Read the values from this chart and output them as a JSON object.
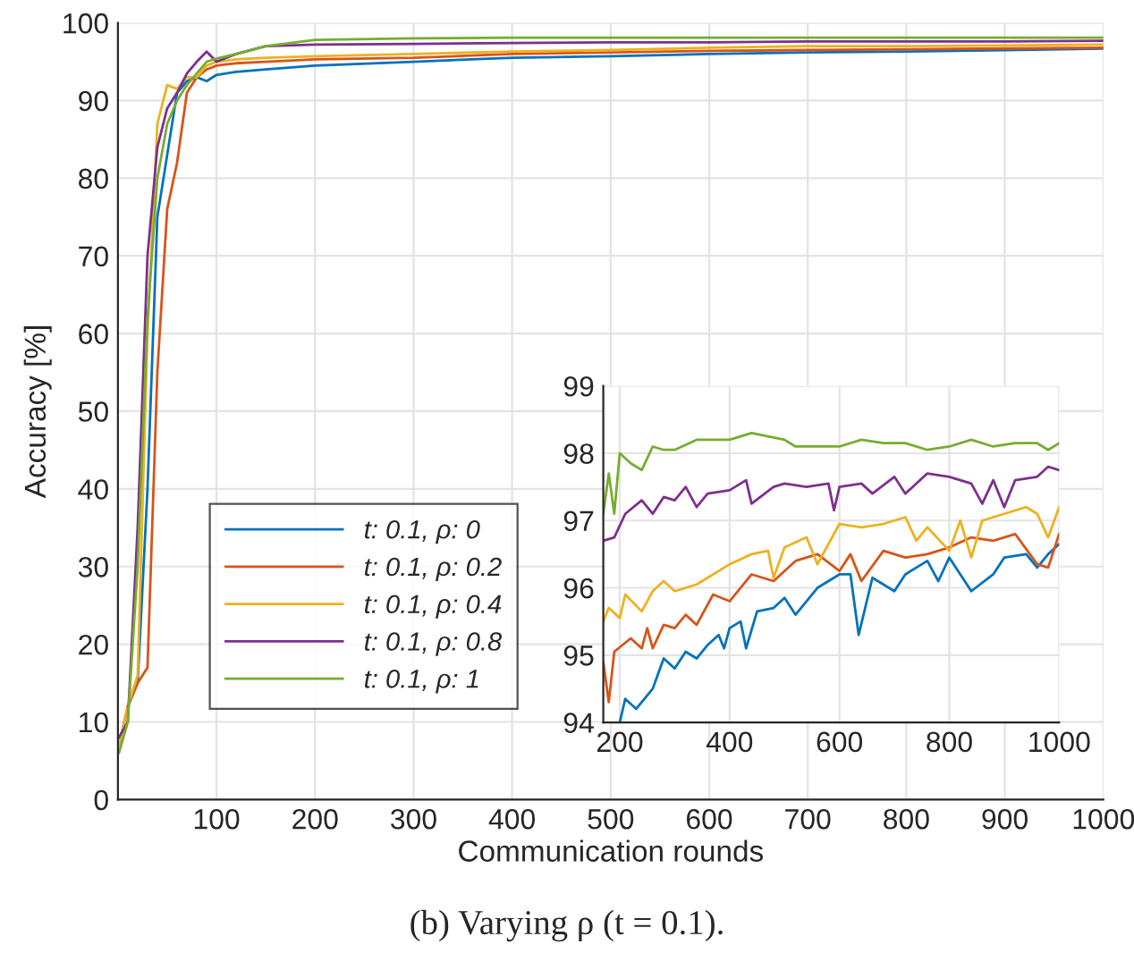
{
  "chart_data": [
    {
      "type": "line",
      "title": "(b) Varying ρ (t = 0.1).",
      "xlabel": "Communication rounds",
      "ylabel": "Accuracy [%]",
      "xlim": [
        0,
        1000
      ],
      "ylim": [
        0,
        100
      ],
      "xticks": [
        100,
        200,
        300,
        400,
        500,
        600,
        700,
        800,
        900,
        1000
      ],
      "yticks": [
        0,
        10,
        20,
        30,
        40,
        50,
        60,
        70,
        80,
        90,
        100
      ],
      "grid": true,
      "legend": "bottom left",
      "x": [
        1,
        10,
        20,
        30,
        40,
        50,
        60,
        70,
        80,
        90,
        100,
        120,
        150,
        200,
        300,
        400,
        500,
        600,
        700,
        800,
        900,
        1000
      ],
      "series": [
        {
          "name": "t: 0.1, ρ: 0",
          "color": "#0072bd",
          "values": [
            null,
            12,
            15,
            40,
            75,
            83,
            91,
            92.5,
            93,
            92.5,
            93.3,
            93.7,
            94,
            94.5,
            95,
            95.5,
            95.7,
            96,
            96.2,
            96.3,
            96.5,
            96.7
          ]
        },
        {
          "name": "t: 0.1, ρ: 0.2",
          "color": "#d95319",
          "values": [
            7,
            12,
            15,
            17,
            55,
            76,
            82,
            91,
            93,
            94,
            94.5,
            94.8,
            95,
            95.3,
            95.5,
            96,
            96.2,
            96.4,
            96.5,
            96.6,
            96.7,
            96.8
          ]
        },
        {
          "name": "t: 0.1, ρ: 0.4",
          "color": "#edb120",
          "values": [
            7,
            12,
            16,
            60,
            87,
            92,
            91.5,
            93,
            93,
            94.5,
            95,
            95.3,
            95.5,
            95.7,
            96,
            96.3,
            96.5,
            96.8,
            97,
            97,
            97.1,
            97.2
          ]
        },
        {
          "name": "t: 0.1, ρ: 0.8",
          "color": "#7e2f8e",
          "values": [
            8,
            10,
            35,
            70,
            84,
            89,
            91,
            93.5,
            95,
            96.3,
            95,
            96,
            97,
            97.2,
            97.3,
            97.4,
            97.5,
            97.5,
            97.6,
            97.6,
            97.6,
            97.7
          ]
        },
        {
          "name": "t: 0.1, ρ: 1",
          "color": "#77ac30",
          "values": [
            6,
            10,
            30,
            62,
            80,
            87,
            90,
            92,
            93.5,
            95,
            95.4,
            96,
            97,
            97.8,
            98,
            98.1,
            98.1,
            98.1,
            98.1,
            98.1,
            98.1,
            98.1
          ]
        }
      ]
    },
    {
      "type": "line",
      "xlim": [
        170,
        1000
      ],
      "ylim": [
        94,
        99
      ],
      "xticks": [
        200,
        400,
        600,
        800,
        1000
      ],
      "yticks": [
        94,
        95,
        96,
        97,
        98,
        99
      ],
      "grid": true,
      "series": [
        {
          "color": "#0072bd",
          "x": [
            200,
            210,
            230,
            260,
            280,
            300,
            320,
            340,
            360,
            380,
            390,
            400,
            420,
            430,
            450,
            480,
            500,
            520,
            560,
            600,
            620,
            635,
            660,
            700,
            720,
            760,
            780,
            800,
            840,
            880,
            900,
            940,
            960,
            980,
            1000
          ],
          "values": [
            94.0,
            94.35,
            94.2,
            94.5,
            94.95,
            94.8,
            95.05,
            94.95,
            95.15,
            95.3,
            95.1,
            95.4,
            95.5,
            95.1,
            95.65,
            95.7,
            95.85,
            95.6,
            96.0,
            96.2,
            96.2,
            95.3,
            96.15,
            95.95,
            96.2,
            96.4,
            96.1,
            96.45,
            95.95,
            96.2,
            96.45,
            96.5,
            96.3,
            96.5,
            96.65
          ]
        },
        {
          "color": "#d95319",
          "x": [
            170,
            180,
            190,
            220,
            240,
            250,
            260,
            280,
            300,
            320,
            340,
            370,
            400,
            440,
            480,
            520,
            560,
            600,
            620,
            640,
            680,
            720,
            760,
            800,
            840,
            880,
            920,
            960,
            980,
            1000
          ],
          "values": [
            94.9,
            94.3,
            95.05,
            95.25,
            95.1,
            95.4,
            95.1,
            95.45,
            95.4,
            95.6,
            95.45,
            95.9,
            95.8,
            96.2,
            96.1,
            96.4,
            96.5,
            96.25,
            96.5,
            96.1,
            96.55,
            96.45,
            96.5,
            96.6,
            96.75,
            96.7,
            96.8,
            96.35,
            96.3,
            96.8
          ]
        },
        {
          "color": "#edb120",
          "x": [
            170,
            180,
            200,
            210,
            240,
            260,
            280,
            300,
            340,
            360,
            400,
            440,
            470,
            480,
            500,
            540,
            560,
            600,
            640,
            680,
            720,
            740,
            760,
            800,
            820,
            840,
            860,
            900,
            940,
            960,
            980,
            1000
          ],
          "values": [
            95.5,
            95.7,
            95.55,
            95.9,
            95.65,
            95.95,
            96.1,
            95.95,
            96.05,
            96.15,
            96.35,
            96.5,
            96.55,
            96.15,
            96.6,
            96.75,
            96.35,
            96.95,
            96.9,
            96.95,
            97.05,
            96.7,
            96.9,
            96.55,
            97.0,
            96.45,
            97.0,
            97.1,
            97.2,
            97.1,
            96.75,
            97.2
          ]
        },
        {
          "color": "#7e2f8e",
          "x": [
            170,
            190,
            210,
            240,
            260,
            280,
            300,
            320,
            340,
            360,
            400,
            430,
            440,
            480,
            500,
            540,
            580,
            590,
            600,
            640,
            660,
            700,
            720,
            760,
            800,
            840,
            860,
            880,
            900,
            920,
            960,
            980,
            1000
          ],
          "values": [
            96.7,
            96.75,
            97.1,
            97.3,
            97.1,
            97.35,
            97.3,
            97.5,
            97.2,
            97.4,
            97.45,
            97.6,
            97.25,
            97.5,
            97.55,
            97.5,
            97.55,
            97.15,
            97.5,
            97.55,
            97.4,
            97.65,
            97.4,
            97.7,
            97.65,
            97.55,
            97.25,
            97.6,
            97.2,
            97.6,
            97.65,
            97.8,
            97.75
          ]
        },
        {
          "color": "#77ac30",
          "x": [
            170,
            180,
            190,
            200,
            220,
            240,
            260,
            280,
            300,
            340,
            400,
            440,
            500,
            520,
            560,
            600,
            640,
            680,
            720,
            760,
            800,
            840,
            880,
            920,
            960,
            980,
            1000
          ],
          "values": [
            97.1,
            97.7,
            97.1,
            98.0,
            97.85,
            97.75,
            98.1,
            98.05,
            98.05,
            98.2,
            98.2,
            98.3,
            98.2,
            98.1,
            98.1,
            98.1,
            98.2,
            98.15,
            98.15,
            98.05,
            98.1,
            98.2,
            98.1,
            98.15,
            98.15,
            98.05,
            98.15
          ]
        }
      ]
    }
  ]
}
